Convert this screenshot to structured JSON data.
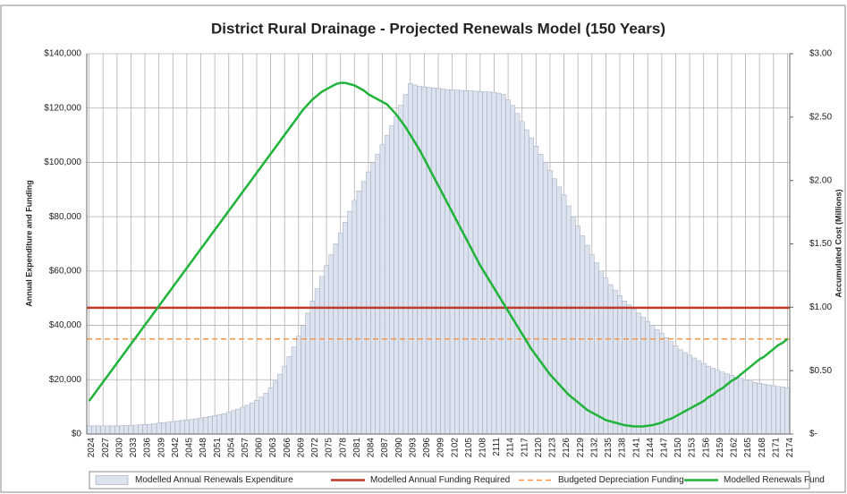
{
  "chart_data": {
    "type": "bar",
    "title": "District Rural Drainage - Projected Renewals Model (150 Years)",
    "ylabel": "Annual Expenditure and Funding",
    "y2label": "Accumulated Cost (Millions)",
    "categories": [
      "2024",
      null,
      null,
      "2027",
      null,
      null,
      "2030",
      null,
      null,
      "2033",
      null,
      null,
      "2036",
      null,
      null,
      "2039",
      null,
      null,
      "2042",
      null,
      null,
      "2045",
      null,
      null,
      "2048",
      null,
      null,
      "2051",
      null,
      null,
      "2054",
      null,
      null,
      "2057",
      null,
      null,
      "2060",
      null,
      null,
      "2063",
      null,
      null,
      "2066",
      null,
      null,
      "2069",
      null,
      null,
      "2072",
      null,
      null,
      "2075",
      null,
      null,
      "2078",
      null,
      null,
      "2081",
      null,
      null,
      "2084",
      null,
      null,
      "2087",
      null,
      null,
      "2090",
      null,
      null,
      "2093",
      null,
      null,
      "2096",
      null,
      null,
      "2099",
      null,
      null,
      "2102",
      null,
      null,
      "2105",
      null,
      null,
      "2108",
      null,
      null,
      "2111",
      null,
      null,
      "2114",
      null,
      null,
      "2117",
      null,
      null,
      "2120",
      null,
      null,
      "2123",
      null,
      null,
      "2126",
      null,
      null,
      "2129",
      null,
      null,
      "2132",
      null,
      null,
      "2135",
      null,
      null,
      "2138",
      null,
      null,
      "2141",
      null,
      null,
      "2144",
      null,
      null,
      "2147",
      null,
      null,
      "2150",
      null,
      null,
      "2153",
      null,
      null,
      "2156",
      null,
      null,
      "2159",
      null,
      null,
      "2162",
      null,
      null,
      "2165",
      null,
      null,
      "2168",
      null,
      null,
      "2171",
      null,
      null,
      "2174"
    ],
    "series": [
      {
        "name": "Modelled Annual Renewals Expenditure",
        "type": "bar",
        "color": "#dce3ef",
        "values": [
          3000,
          3000,
          3000,
          3000,
          3000,
          3000,
          3000,
          3100,
          3100,
          3200,
          3300,
          3400,
          3500,
          3600,
          3800,
          4000,
          4200,
          4400,
          4600,
          4800,
          5000,
          5200,
          5400,
          5600,
          5900,
          6200,
          6500,
          6800,
          7100,
          7500,
          8000,
          8600,
          9200,
          9900,
          10600,
          11400,
          12400,
          13600,
          15000,
          17000,
          19500,
          22000,
          25000,
          28500,
          32000,
          36000,
          40000,
          44500,
          49000,
          53500,
          58000,
          62000,
          66000,
          70000,
          74000,
          78000,
          82000,
          86000,
          89500,
          93000,
          96500,
          100000,
          103000,
          106500,
          110000,
          113500,
          117000,
          121000,
          125000,
          129000,
          128500,
          128000,
          127800,
          127600,
          127400,
          127200,
          127000,
          126800,
          126700,
          126600,
          126500,
          126400,
          126300,
          126200,
          126100,
          126000,
          125900,
          125800,
          125500,
          125000,
          123000,
          121000,
          118000,
          115000,
          112000,
          109000,
          106000,
          103000,
          100000,
          97000,
          94000,
          91000,
          88000,
          84000,
          80000,
          76500,
          73000,
          69500,
          66000,
          63000,
          60000,
          57500,
          55000,
          53000,
          51000,
          49000,
          47500,
          46000,
          44500,
          43000,
          41500,
          40000,
          38500,
          37000,
          35500,
          34000,
          32500,
          31000,
          30000,
          29000,
          28000,
          27000,
          26000,
          25000,
          24200,
          23500,
          22800,
          22200,
          21600,
          21000,
          20500,
          20000,
          19500,
          19000,
          18700,
          18400,
          18100,
          17800,
          17500,
          17300,
          17000
        ]
      },
      {
        "name": "Modelled Renewals Fund",
        "type": "line",
        "axis": "y2",
        "color": "#1fb33a",
        "values": [
          0.26,
          0.31,
          0.36,
          0.41,
          0.46,
          0.51,
          0.56,
          0.61,
          0.66,
          0.71,
          0.76,
          0.81,
          0.86,
          0.91,
          0.96,
          1.01,
          1.06,
          1.11,
          1.16,
          1.21,
          1.26,
          1.31,
          1.36,
          1.41,
          1.46,
          1.51,
          1.56,
          1.61,
          1.66,
          1.71,
          1.76,
          1.81,
          1.86,
          1.91,
          1.96,
          2.01,
          2.06,
          2.11,
          2.16,
          2.21,
          2.26,
          2.31,
          2.36,
          2.41,
          2.46,
          2.51,
          2.56,
          2.6,
          2.64,
          2.67,
          2.7,
          2.72,
          2.74,
          2.76,
          2.77,
          2.77,
          2.76,
          2.75,
          2.73,
          2.71,
          2.68,
          2.66,
          2.64,
          2.62,
          2.6,
          2.56,
          2.52,
          2.47,
          2.42,
          2.36,
          2.3,
          2.24,
          2.17,
          2.1,
          2.03,
          1.96,
          1.89,
          1.82,
          1.75,
          1.68,
          1.61,
          1.54,
          1.47,
          1.4,
          1.33,
          1.27,
          1.21,
          1.15,
          1.09,
          1.03,
          0.97,
          0.91,
          0.85,
          0.79,
          0.73,
          0.67,
          0.62,
          0.57,
          0.52,
          0.47,
          0.43,
          0.39,
          0.35,
          0.31,
          0.28,
          0.25,
          0.22,
          0.19,
          0.17,
          0.15,
          0.13,
          0.11,
          0.1,
          0.09,
          0.08,
          0.07,
          0.065,
          0.06,
          0.06,
          0.06,
          0.065,
          0.07,
          0.08,
          0.09,
          0.11,
          0.12,
          0.14,
          0.16,
          0.18,
          0.2,
          0.22,
          0.24,
          0.26,
          0.29,
          0.31,
          0.34,
          0.36,
          0.39,
          0.42,
          0.44,
          0.47,
          0.5,
          0.53,
          0.56,
          0.59,
          0.61,
          0.64,
          0.67,
          0.7,
          0.72,
          0.75
        ]
      }
    ],
    "hlines": [
      {
        "name": "Modelled Annual Funding Required",
        "color": "#c0392b",
        "value": 46500,
        "dashed": false
      },
      {
        "name": "Budgeted Depreciation Funding",
        "color": "#f79646",
        "value": 35000,
        "dashed": true
      }
    ],
    "ylim": [
      0,
      140000
    ],
    "yticks": [
      {
        "value": 0,
        "label": "$0"
      },
      {
        "value": 20000,
        "label": "$20,000"
      },
      {
        "value": 40000,
        "label": "$40,000"
      },
      {
        "value": 60000,
        "label": "$60,000"
      },
      {
        "value": 80000,
        "label": "$80,000"
      },
      {
        "value": 100000,
        "label": "$100,000"
      },
      {
        "value": 120000,
        "label": "$120,000"
      },
      {
        "value": 140000,
        "label": "$140,000"
      }
    ],
    "y2lim": [
      0,
      3
    ],
    "y2ticks": [
      {
        "value": 0,
        "label": "$-"
      },
      {
        "value": 0.5,
        "label": "$0.50"
      },
      {
        "value": 1,
        "label": "$1.00"
      },
      {
        "value": 1.5,
        "label": "$1.50"
      },
      {
        "value": 2,
        "label": "$2.00"
      },
      {
        "value": 2.5,
        "label": "$2.50"
      },
      {
        "value": 3,
        "label": "$3.00"
      }
    ],
    "grid": true,
    "legend": "bottom"
  }
}
